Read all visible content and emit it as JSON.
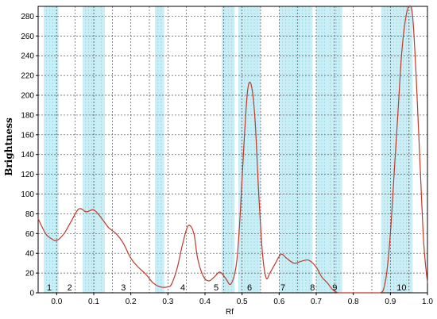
{
  "chart_data": {
    "type": "line",
    "title": "",
    "xlabel": "Rf",
    "ylabel": "Brightness",
    "xlim": [
      -0.05,
      1.0
    ],
    "ylim": [
      0,
      290
    ],
    "x_ticks": [
      0.0,
      0.1,
      0.2,
      0.3,
      0.4,
      0.5,
      0.6,
      0.7,
      0.8,
      0.9,
      1.0
    ],
    "x_tick_labels": [
      "0.0",
      "0.1",
      "0.2",
      "0.3",
      "0.4",
      "0.5",
      "0.6",
      "0.7",
      "0.8",
      "0.9",
      "1.0"
    ],
    "y_ticks": [
      0,
      20,
      40,
      60,
      80,
      100,
      120,
      140,
      160,
      180,
      200,
      220,
      240,
      260,
      280
    ],
    "y_tick_labels": [
      "0",
      "20",
      "40",
      "60",
      "80",
      "100",
      "120",
      "140",
      "160",
      "180",
      "200",
      "220",
      "240",
      "260",
      "280"
    ],
    "grid": true,
    "colors": {
      "line": "#c0392b",
      "band": "#9fe0ec",
      "grid": "#555555"
    },
    "bands": [
      {
        "label": "1",
        "from": -0.035,
        "to": 0.005
      },
      {
        "label": "2",
        "from": 0.07,
        "to": 0.11
      },
      {
        "label": "3",
        "from": 0.11,
        "to": 0.13
      },
      {
        "label": "4",
        "from": 0.265,
        "to": 0.29
      },
      {
        "label": "5",
        "from": 0.445,
        "to": 0.48
      },
      {
        "label": "6",
        "from": 0.49,
        "to": 0.55
      },
      {
        "label": "7",
        "from": 0.6,
        "to": 0.69
      },
      {
        "label": "8",
        "from": 0.7,
        "to": 0.73
      },
      {
        "label": "9",
        "from": 0.73,
        "to": 0.77
      },
      {
        "label": "10",
        "from": 0.875,
        "to": 0.96
      }
    ],
    "band_label_positions": [
      {
        "label": "1",
        "x": -0.02
      },
      {
        "label": "2",
        "x": 0.035
      },
      {
        "label": "3",
        "x": 0.18
      },
      {
        "label": "4",
        "x": 0.34
      },
      {
        "label": "5",
        "x": 0.43
      },
      {
        "label": "6",
        "x": 0.52
      },
      {
        "label": "7",
        "x": 0.61
      },
      {
        "label": "8",
        "x": 0.69
      },
      {
        "label": "9",
        "x": 0.75
      },
      {
        "label": "10",
        "x": 0.93
      }
    ],
    "series": [
      {
        "x": [
          -0.05,
          -0.03,
          -0.015,
          0.0,
          0.02,
          0.04,
          0.06,
          0.08,
          0.1,
          0.12,
          0.14,
          0.16,
          0.18,
          0.2,
          0.22,
          0.24,
          0.26,
          0.28,
          0.3,
          0.31,
          0.325,
          0.34,
          0.355,
          0.37,
          0.38,
          0.395,
          0.41,
          0.425,
          0.44,
          0.455,
          0.47,
          0.485,
          0.495,
          0.505,
          0.515,
          0.525,
          0.535,
          0.545,
          0.555,
          0.565,
          0.575,
          0.59,
          0.605,
          0.62,
          0.64,
          0.66,
          0.68,
          0.7,
          0.715,
          0.73,
          0.745,
          0.76,
          0.78,
          0.8,
          0.82,
          0.84,
          0.86,
          0.87,
          0.88,
          0.89,
          0.9,
          0.91,
          0.92,
          0.93,
          0.94,
          0.95,
          0.96,
          0.97,
          0.98,
          0.99,
          1.0
        ],
        "y": [
          75,
          60,
          55,
          53,
          60,
          73,
          85,
          82,
          84,
          76,
          66,
          60,
          50,
          35,
          26,
          19,
          10,
          6,
          6,
          9,
          25,
          50,
          68,
          60,
          35,
          17,
          12,
          16,
          21,
          15,
          9,
          30,
          80,
          150,
          205,
          210,
          175,
          100,
          40,
          15,
          20,
          30,
          39,
          35,
          30,
          32,
          33,
          26,
          16,
          10,
          3,
          0,
          0,
          0,
          0,
          0,
          0,
          0,
          2,
          20,
          60,
          120,
          180,
          240,
          275,
          290,
          280,
          215,
          130,
          50,
          10
        ]
      }
    ]
  }
}
